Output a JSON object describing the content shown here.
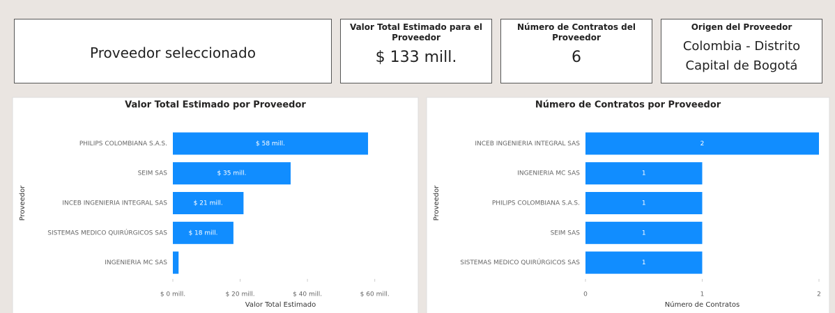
{
  "cards": [
    {
      "title": "Proveedor seleccionado"
    },
    {
      "title": "Valor Total Estimado para el Proveedor",
      "value": "$ 133 mill."
    },
    {
      "title": "Número de Contratos del Proveedor",
      "value": "6"
    },
    {
      "title": "Origen del Proveedor",
      "value": "Colombia - Distrito Capital de Bogotá"
    }
  ],
  "chart_data": [
    {
      "type": "bar",
      "orientation": "horizontal",
      "title": "Valor Total Estimado por Proveedor",
      "x_label": "Valor Total Estimado",
      "y_label": "Proveedor",
      "color": "#118dff",
      "categories": [
        "PHILIPS COLOMBIANA S.A.S.",
        "SEIM SAS",
        "INCEB INGENIERIA INTEGRAL SAS",
        "SISTEMAS MEDICO QUIRÚRGICOS SAS",
        "INGENIERIA MC SAS"
      ],
      "values": [
        58,
        35,
        21,
        18,
        1.7
      ],
      "value_labels": [
        "$ 58 mill.",
        "$ 35 mill.",
        "$ 21 mill.",
        "$ 18 mill.",
        null
      ],
      "xlim": [
        0,
        64
      ],
      "xticks": [
        {
          "value": 0,
          "label": "$ 0 mill."
        },
        {
          "value": 20,
          "label": "$ 20 mill."
        },
        {
          "value": 40,
          "label": "$ 40 mill."
        },
        {
          "value": 60,
          "label": "$ 60 mill."
        }
      ]
    },
    {
      "type": "bar",
      "orientation": "horizontal",
      "title": "Número de Contratos por Proveedor",
      "x_label": "Número de Contratos",
      "y_label": "Proveedor",
      "color": "#118dff",
      "categories": [
        "INCEB INGENIERIA INTEGRAL SAS",
        "INGENIERIA MC SAS",
        "PHILIPS COLOMBIANA S.A.S.",
        "SEIM SAS",
        "SISTEMAS MEDICO QUIRÚRGICOS SAS"
      ],
      "values": [
        2,
        1,
        1,
        1,
        1
      ],
      "xlim": [
        0,
        2
      ],
      "xticks": [
        0,
        1,
        2
      ]
    }
  ]
}
